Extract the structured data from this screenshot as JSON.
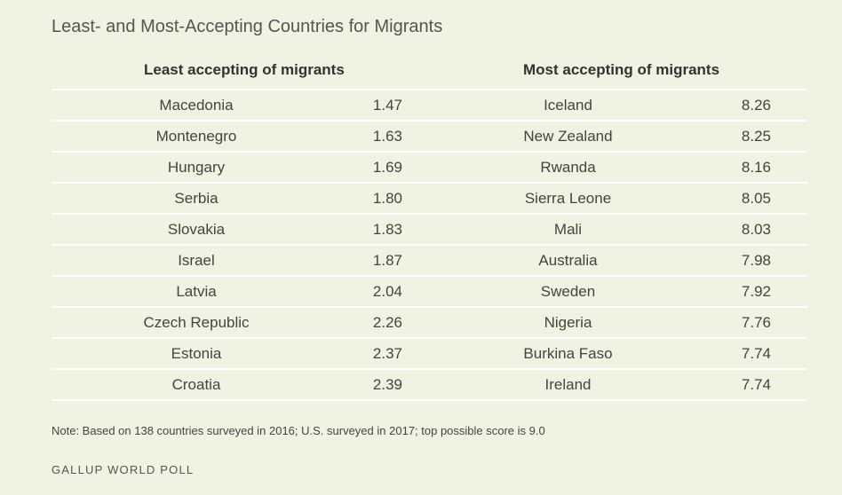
{
  "title": "Least- and Most-Accepting Countries for Migrants",
  "note": "Note: Based on 138 countries surveyed in 2016; U.S. surveyed in 2017; top possible score is 9.0",
  "source": "GALLUP WORLD POLL",
  "chart_data": {
    "type": "table",
    "title": "Least- and Most-Accepting Countries for Migrants",
    "columns": [
      "Least accepting of migrants",
      "",
      "Most accepting of migrants",
      ""
    ],
    "groups": [
      {
        "header": "Least accepting of migrants",
        "rows": [
          {
            "country": "Macedonia",
            "value": "1.47"
          },
          {
            "country": "Montenegro",
            "value": "1.63"
          },
          {
            "country": "Hungary",
            "value": "1.69"
          },
          {
            "country": "Serbia",
            "value": "1.80"
          },
          {
            "country": "Slovakia",
            "value": "1.83"
          },
          {
            "country": "Israel",
            "value": "1.87"
          },
          {
            "country": "Latvia",
            "value": "2.04"
          },
          {
            "country": "Czech Republic",
            "value": "2.26"
          },
          {
            "country": "Estonia",
            "value": "2.37"
          },
          {
            "country": "Croatia",
            "value": "2.39"
          }
        ]
      },
      {
        "header": "Most accepting of migrants",
        "rows": [
          {
            "country": "Iceland",
            "value": "8.26"
          },
          {
            "country": "New Zealand",
            "value": "8.25"
          },
          {
            "country": "Rwanda",
            "value": "8.16"
          },
          {
            "country": "Sierra Leone",
            "value": "8.05"
          },
          {
            "country": "Mali",
            "value": "8.03"
          },
          {
            "country": "Australia",
            "value": "7.98"
          },
          {
            "country": "Sweden",
            "value": "7.92"
          },
          {
            "country": "Nigeria",
            "value": "7.76"
          },
          {
            "country": "Burkina Faso",
            "value": "7.74"
          },
          {
            "country": "Ireland",
            "value": "7.74"
          }
        ]
      }
    ]
  }
}
